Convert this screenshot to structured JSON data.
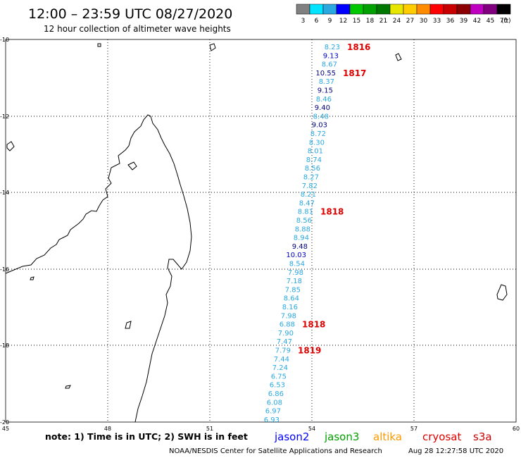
{
  "header": {
    "title": "12:00 – 23:59 UTC 08/27/2020",
    "subtitle": "12 hour collection of altimeter wave heights"
  },
  "legend": {
    "unit": "(ft)",
    "bins": [
      {
        "label": "3",
        "color": "#808080"
      },
      {
        "label": "6",
        "color": "#00e5ff"
      },
      {
        "label": "9",
        "color": "#2aa8e0"
      },
      {
        "label": "12",
        "color": "#0000ff"
      },
      {
        "label": "15",
        "color": "#00c800"
      },
      {
        "label": "18",
        "color": "#00a000"
      },
      {
        "label": "21",
        "color": "#007800"
      },
      {
        "label": "24",
        "color": "#e6e600"
      },
      {
        "label": "27",
        "color": "#ffcc00"
      },
      {
        "label": "30",
        "color": "#ff8c00"
      },
      {
        "label": "33",
        "color": "#ff0000"
      },
      {
        "label": "36",
        "color": "#c80000"
      },
      {
        "label": "39",
        "color": "#8b0000"
      },
      {
        "label": "42",
        "color": "#c000c0"
      },
      {
        "label": "45",
        "color": "#800080"
      },
      {
        "label": "70",
        "color": "#000000"
      }
    ]
  },
  "axes": {
    "lat_labels": [
      "-10",
      "-12",
      "-14",
      "-16",
      "-18",
      "-20"
    ],
    "lon_labels": [
      "45",
      "48",
      "51",
      "54",
      "57",
      "60"
    ]
  },
  "track": {
    "readings": [
      {
        "value": "8.23",
        "color": "#2aa8e0"
      },
      {
        "value": "9.13",
        "color": "#0000c8"
      },
      {
        "value": "8.67",
        "color": "#2aa8e0"
      },
      {
        "value": "10.55",
        "color": "#000080"
      },
      {
        "value": "8.37",
        "color": "#2aa8e0"
      },
      {
        "value": "9.15",
        "color": "#000080"
      },
      {
        "value": "8.46",
        "color": "#2aa8e0"
      },
      {
        "value": "9.40",
        "color": "#000080"
      },
      {
        "value": "8.48",
        "color": "#2aa8e0"
      },
      {
        "value": "9.03",
        "color": "#000080"
      },
      {
        "value": "8.72",
        "color": "#2aa8e0"
      },
      {
        "value": "8.30",
        "color": "#2aa8e0"
      },
      {
        "value": "8.01",
        "color": "#2aa8e0"
      },
      {
        "value": "8.74",
        "color": "#2aa8e0"
      },
      {
        "value": "8.56",
        "color": "#2aa8e0"
      },
      {
        "value": "8.27",
        "color": "#2aa8e0"
      },
      {
        "value": "7.82",
        "color": "#2aa8e0"
      },
      {
        "value": "8.21",
        "color": "#2aa8e0"
      },
      {
        "value": "8.47",
        "color": "#2aa8e0"
      },
      {
        "value": "8.81",
        "color": "#2aa8e0"
      },
      {
        "value": "8.56",
        "color": "#2aa8e0"
      },
      {
        "value": "8.88",
        "color": "#2aa8e0"
      },
      {
        "value": "8.94",
        "color": "#2aa8e0"
      },
      {
        "value": "9.48",
        "color": "#000080"
      },
      {
        "value": "10.03",
        "color": "#0000c8"
      },
      {
        "value": "8.54",
        "color": "#2aa8e0"
      },
      {
        "value": "7.98",
        "color": "#2aa8e0"
      },
      {
        "value": "7.18",
        "color": "#2aa8e0"
      },
      {
        "value": "7.85",
        "color": "#2aa8e0"
      },
      {
        "value": "8.64",
        "color": "#2aa8e0"
      },
      {
        "value": "8.16",
        "color": "#2aa8e0"
      },
      {
        "value": "7.98",
        "color": "#2aa8e0"
      },
      {
        "value": "6.88",
        "color": "#2aa8e0"
      },
      {
        "value": "7.90",
        "color": "#2aa8e0"
      },
      {
        "value": "7.47",
        "color": "#2aa8e0"
      },
      {
        "value": "7.79",
        "color": "#2aa8e0"
      },
      {
        "value": "7.44",
        "color": "#2aa8e0"
      },
      {
        "value": "7.24",
        "color": "#2aa8e0"
      },
      {
        "value": "6.75",
        "color": "#2aa8e0"
      },
      {
        "value": "6.53",
        "color": "#2aa8e0"
      },
      {
        "value": "6.86",
        "color": "#2aa8e0"
      },
      {
        "value": "6.08",
        "color": "#2aa8e0"
      },
      {
        "value": "6.97",
        "color": "#2aa8e0"
      },
      {
        "value": "6.93",
        "color": "#2aa8e0"
      }
    ],
    "time_marks": [
      {
        "label": "1816",
        "at": 0
      },
      {
        "label": "1817",
        "at": 3
      },
      {
        "label": "1818",
        "at": 19
      },
      {
        "label": "1818",
        "at": 32
      },
      {
        "label": "1819",
        "at": 35
      }
    ],
    "time_color": "#e00000"
  },
  "footer": {
    "note": "note:  1) Time is in UTC;  2) SWH is in feet",
    "satellites": [
      {
        "label": "jason2",
        "color": "#0000ff"
      },
      {
        "label": "jason3",
        "color": "#00a000"
      },
      {
        "label": "altika",
        "color": "#ff9900"
      },
      {
        "label": "cryosat",
        "color": "#e00000"
      },
      {
        "label": "s3a",
        "color": "#c80000"
      }
    ],
    "credit": "NOAA/NESDIS Center for Satellite Applications and Research",
    "timestamp": "Aug 28 12:27:58 UTC 2020"
  }
}
